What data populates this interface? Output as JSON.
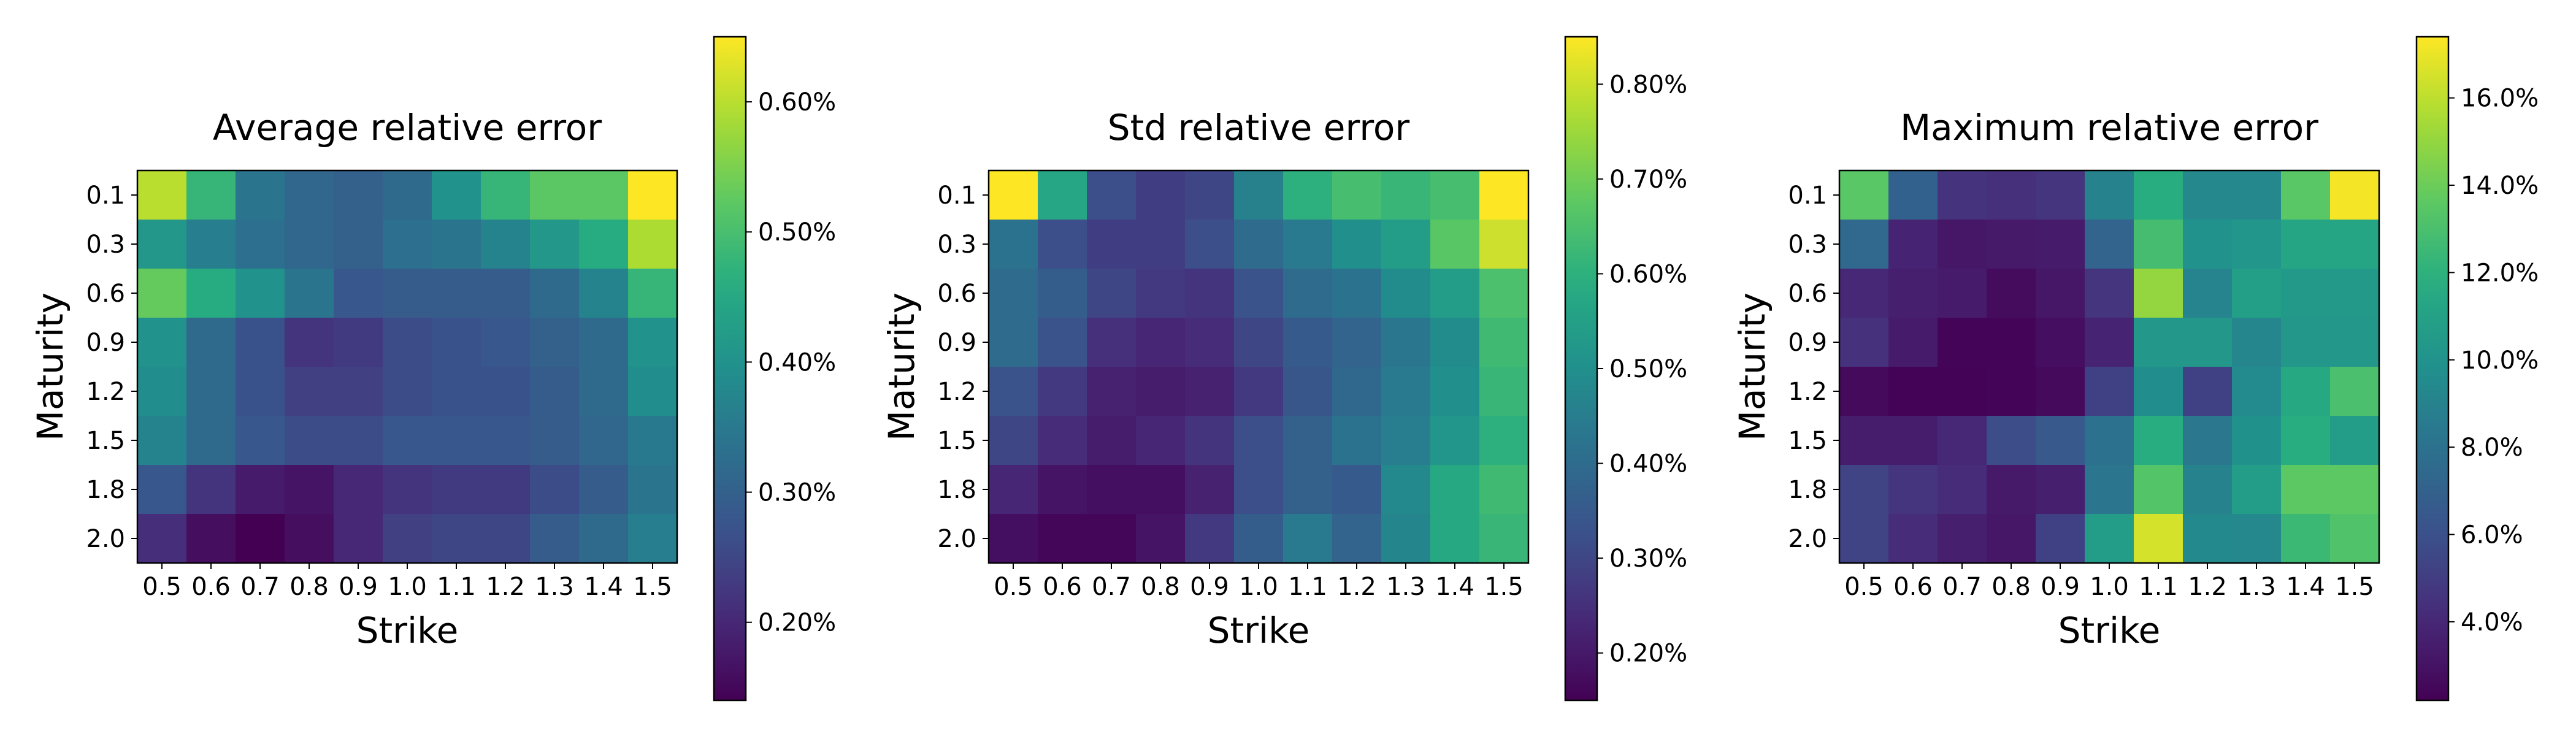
{
  "chart_data": [
    {
      "type": "heatmap",
      "title": "Average relative error",
      "xlabel": "Strike",
      "ylabel": "Maturity",
      "x": [
        "0.5",
        "0.6",
        "0.7",
        "0.8",
        "0.9",
        "1.0",
        "1.1",
        "1.2",
        "1.3",
        "1.4",
        "1.5"
      ],
      "y": [
        "0.1",
        "0.3",
        "0.6",
        "0.9",
        "1.2",
        "1.5",
        "1.8",
        "2.0"
      ],
      "colorbar": {
        "min": 0.14,
        "max": 0.65,
        "ticks": [
          0.2,
          0.3,
          0.4,
          0.5,
          0.6
        ],
        "tick_labels": [
          "0.20%",
          "0.30%",
          "0.40%",
          "0.50%",
          "0.60%"
        ]
      },
      "colormap": "viridis",
      "values": [
        [
          0.6,
          0.48,
          0.34,
          0.31,
          0.3,
          0.32,
          0.4,
          0.48,
          0.52,
          0.52,
          0.65
        ],
        [
          0.41,
          0.36,
          0.33,
          0.31,
          0.3,
          0.33,
          0.34,
          0.37,
          0.41,
          0.46,
          0.59
        ],
        [
          0.53,
          0.46,
          0.4,
          0.34,
          0.28,
          0.29,
          0.29,
          0.29,
          0.32,
          0.37,
          0.48
        ],
        [
          0.4,
          0.32,
          0.27,
          0.22,
          0.23,
          0.26,
          0.27,
          0.28,
          0.3,
          0.32,
          0.4
        ],
        [
          0.39,
          0.32,
          0.27,
          0.24,
          0.24,
          0.26,
          0.27,
          0.27,
          0.29,
          0.32,
          0.39
        ],
        [
          0.37,
          0.32,
          0.28,
          0.26,
          0.26,
          0.28,
          0.28,
          0.28,
          0.29,
          0.31,
          0.35
        ],
        [
          0.28,
          0.22,
          0.18,
          0.17,
          0.2,
          0.22,
          0.23,
          0.23,
          0.26,
          0.29,
          0.34
        ],
        [
          0.21,
          0.16,
          0.14,
          0.16,
          0.2,
          0.24,
          0.25,
          0.25,
          0.29,
          0.32,
          0.36
        ]
      ]
    },
    {
      "type": "heatmap",
      "title": "Std relative error",
      "xlabel": "Strike",
      "ylabel": "Maturity",
      "x": [
        "0.5",
        "0.6",
        "0.7",
        "0.8",
        "0.9",
        "1.0",
        "1.1",
        "1.2",
        "1.3",
        "1.4",
        "1.5"
      ],
      "y": [
        "0.1",
        "0.3",
        "0.6",
        "0.9",
        "1.2",
        "1.5",
        "1.8",
        "2.0"
      ],
      "colorbar": {
        "min": 0.15,
        "max": 0.85,
        "ticks": [
          0.2,
          0.3,
          0.4,
          0.5,
          0.6,
          0.7,
          0.8
        ],
        "tick_labels": [
          "0.20%",
          "0.30%",
          "0.40%",
          "0.50%",
          "0.60%",
          "0.70%",
          "0.80%"
        ]
      },
      "colormap": "viridis",
      "values": [
        [
          0.85,
          0.57,
          0.32,
          0.28,
          0.3,
          0.46,
          0.6,
          0.64,
          0.62,
          0.64,
          0.85
        ],
        [
          0.42,
          0.32,
          0.28,
          0.28,
          0.32,
          0.4,
          0.44,
          0.5,
          0.54,
          0.67,
          0.8
        ],
        [
          0.4,
          0.36,
          0.3,
          0.27,
          0.26,
          0.33,
          0.4,
          0.42,
          0.49,
          0.54,
          0.65
        ],
        [
          0.4,
          0.33,
          0.25,
          0.23,
          0.24,
          0.3,
          0.35,
          0.38,
          0.43,
          0.49,
          0.63
        ],
        [
          0.33,
          0.27,
          0.22,
          0.21,
          0.22,
          0.27,
          0.34,
          0.39,
          0.44,
          0.5,
          0.62
        ],
        [
          0.3,
          0.24,
          0.21,
          0.23,
          0.26,
          0.32,
          0.37,
          0.42,
          0.45,
          0.52,
          0.6
        ],
        [
          0.23,
          0.19,
          0.18,
          0.18,
          0.22,
          0.32,
          0.37,
          0.35,
          0.48,
          0.58,
          0.63
        ],
        [
          0.18,
          0.16,
          0.16,
          0.19,
          0.27,
          0.36,
          0.44,
          0.38,
          0.47,
          0.58,
          0.62
        ]
      ]
    },
    {
      "type": "heatmap",
      "title": "Maximum relative error",
      "xlabel": "Strike",
      "ylabel": "Maturity",
      "x": [
        "0.5",
        "0.6",
        "0.7",
        "0.8",
        "0.9",
        "1.0",
        "1.1",
        "1.2",
        "1.3",
        "1.4",
        "1.5"
      ],
      "y": [
        "0.1",
        "0.3",
        "0.6",
        "0.9",
        "1.2",
        "1.5",
        "1.8",
        "2.0"
      ],
      "colorbar": {
        "min": 2.2,
        "max": 17.4,
        "ticks": [
          4,
          6,
          8,
          10,
          12,
          14,
          16
        ],
        "tick_labels": [
          "4.0%",
          "6.0%",
          "8.0%",
          "10.0%",
          "12.0%",
          "14.0%",
          "16.0%"
        ]
      },
      "colormap": "viridis",
      "values": [
        [
          13.5,
          7.0,
          4.5,
          4.3,
          4.6,
          9.0,
          11.8,
          9.3,
          9.3,
          13.5,
          17.2
        ],
        [
          7.5,
          3.8,
          3.2,
          3.3,
          3.4,
          7.2,
          12.8,
          10.0,
          10.2,
          11.2,
          11.2
        ],
        [
          4.0,
          3.6,
          3.4,
          2.7,
          3.2,
          4.6,
          15.0,
          9.1,
          10.8,
          10.5,
          10.5
        ],
        [
          4.4,
          3.4,
          2.4,
          2.4,
          2.8,
          3.8,
          10.3,
          10.3,
          9.2,
          10.3,
          10.3
        ],
        [
          2.6,
          2.3,
          2.3,
          2.4,
          2.6,
          5.2,
          9.6,
          5.2,
          9.5,
          11.5,
          13.0
        ],
        [
          3.5,
          3.5,
          4.0,
          5.8,
          6.5,
          8.0,
          11.8,
          8.3,
          9.9,
          11.8,
          10.6
        ],
        [
          5.3,
          4.6,
          4.2,
          3.3,
          3.6,
          8.2,
          13.3,
          9.0,
          10.6,
          13.6,
          13.6
        ],
        [
          5.3,
          4.2,
          3.6,
          3.2,
          5.2,
          10.6,
          16.5,
          9.4,
          9.3,
          12.5,
          13.2
        ]
      ]
    }
  ]
}
